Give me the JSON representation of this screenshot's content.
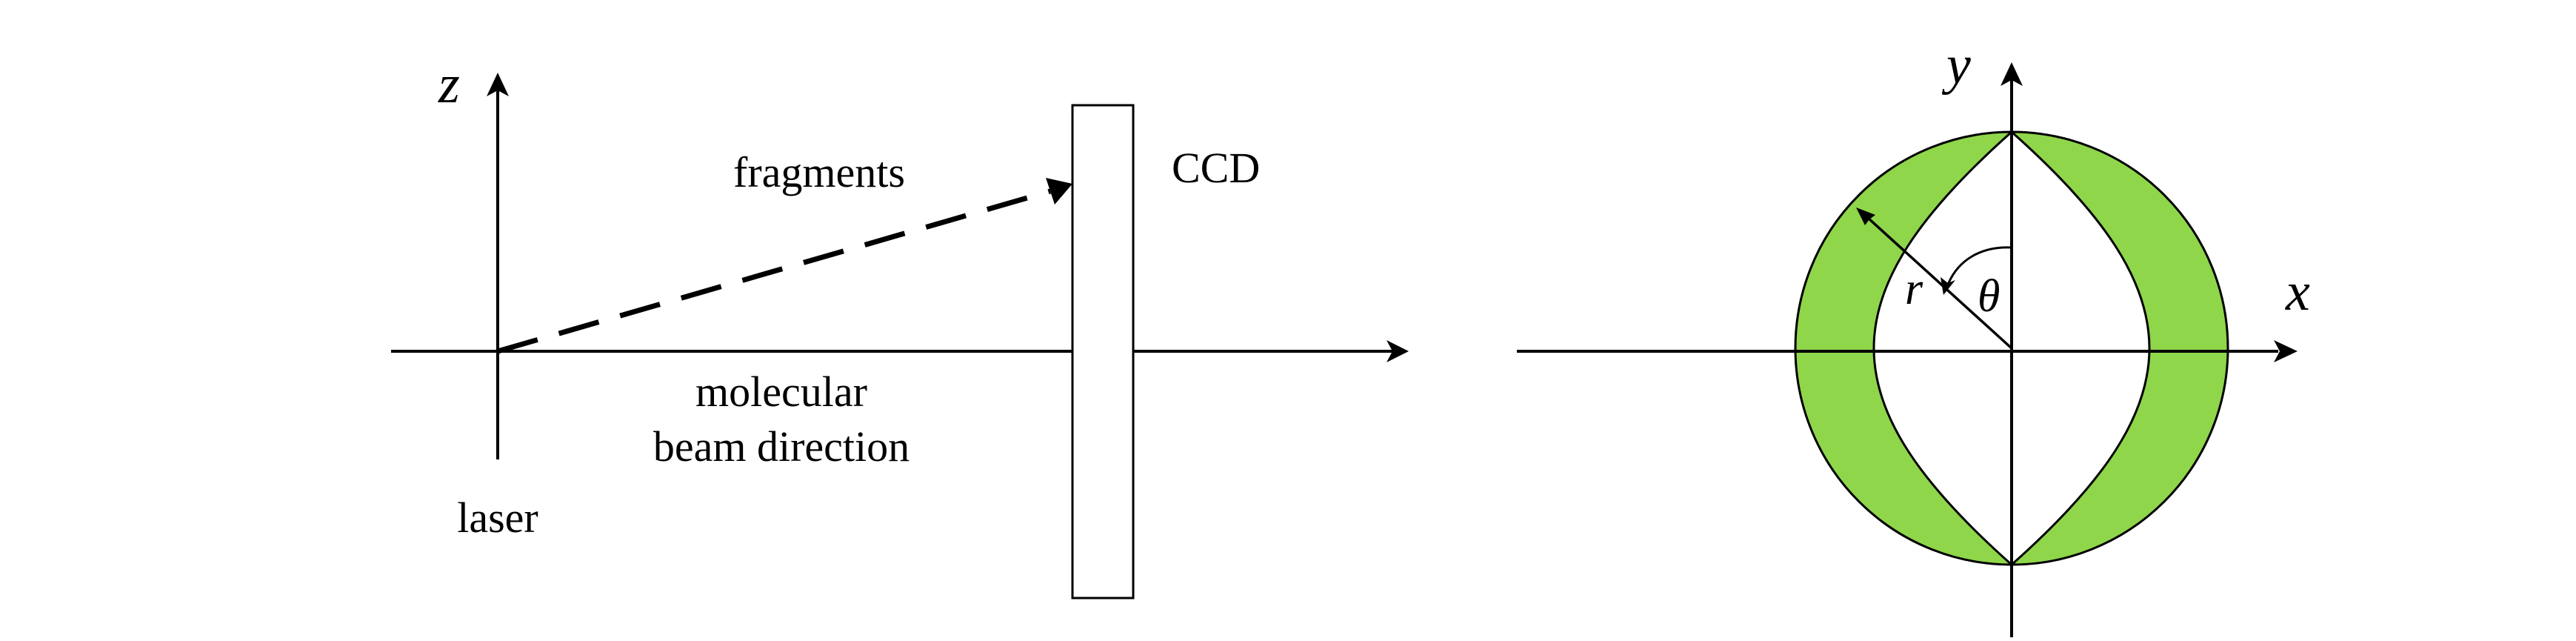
{
  "left_panel": {
    "axis_z_label": "z",
    "fragments_label": "fragments",
    "detector_label": "CCD",
    "beam_label_line1": "molecular",
    "beam_label_line2": "beam direction",
    "laser_label": "laser"
  },
  "right_panel": {
    "axis_y_label": "y",
    "axis_x_label": "x",
    "radius_label": "r",
    "angle_label": "θ"
  },
  "colors": {
    "ring_fill": "#8fd64a",
    "line": "#000000",
    "background": "#ffffff"
  }
}
